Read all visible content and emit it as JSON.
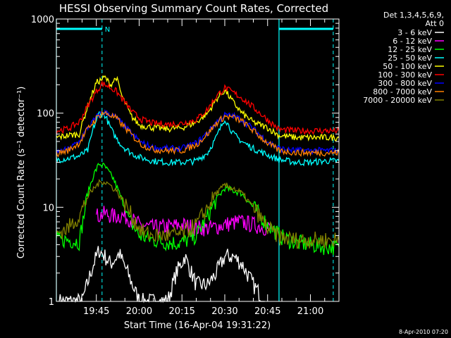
{
  "chart_data": {
    "type": "line",
    "title": "HESSI Observing Summary Count Rates, Corrected",
    "xlabel": "Start Time (16-Apr-04 19:31:22)",
    "ylabel": "Corrected Count Rate (s⁻¹ detector⁻¹)",
    "yscale": "log",
    "ylim": [
      1,
      1000
    ],
    "yticks": [
      1,
      10,
      100,
      1000
    ],
    "ytick_labels": [
      "1",
      "10",
      "100",
      "1000"
    ],
    "xlim": [
      "19:31",
      "21:10"
    ],
    "xticks": [
      "19:45",
      "20:00",
      "20:15",
      "20:30",
      "20:45",
      "21:00"
    ],
    "grid": false,
    "legend_placement": "right",
    "legend_header": [
      "Det 1,3,4,5,6,9,",
      "Att 0"
    ],
    "timestamp": "8-Apr-2010 07:20",
    "annotations": [
      {
        "text": "N",
        "at": "19:47"
      }
    ],
    "markers": {
      "dashed_lines": [
        "19:47",
        "21:08"
      ],
      "solid_lines": [
        "19:31",
        "20:49"
      ],
      "bars": [
        [
          "19:31",
          "19:47"
        ],
        [
          "20:49",
          "21:08"
        ]
      ],
      "color": "#00ffff"
    },
    "series": [
      {
        "name": "3 - 6 keV",
        "color": "#ffffff",
        "x": [
          "19:32",
          "19:40",
          "19:44",
          "19:46",
          "19:48",
          "19:50",
          "19:53",
          "19:56",
          "20:00",
          "20:05",
          "20:10",
          "20:13",
          "20:16",
          "20:20",
          "20:24",
          "20:27",
          "20:30",
          "20:33",
          "20:36",
          "20:40",
          "20:44"
        ],
        "y": [
          1.0,
          1.0,
          2.5,
          3.5,
          3.0,
          2.5,
          3.2,
          2.0,
          1.0,
          1.0,
          1.0,
          2.0,
          3.0,
          1.5,
          1.5,
          2.0,
          3.0,
          3.0,
          2.5,
          1.5,
          1.0
        ]
      },
      {
        "name": "6 - 12 keV",
        "color": "#ff00ff",
        "x": [
          "19:45",
          "19:48",
          "19:51",
          "19:54",
          "19:57",
          "20:00",
          "20:05",
          "20:10",
          "20:15",
          "20:20",
          "20:25",
          "20:30",
          "20:35",
          "20:40",
          "20:45",
          "20:47"
        ],
        "y": [
          8.0,
          8.5,
          8.0,
          8.2,
          7.5,
          6.5,
          6.0,
          6.2,
          6.5,
          6.0,
          6.0,
          6.5,
          7.0,
          6.5,
          6.0,
          6.0
        ]
      },
      {
        "name": "12 - 25 keV",
        "color": "#00ff00",
        "x": [
          "19:31",
          "19:35",
          "19:39",
          "19:42",
          "19:44",
          "19:46",
          "19:48",
          "19:51",
          "19:54",
          "19:57",
          "20:00",
          "20:05",
          "20:10",
          "20:15",
          "20:20",
          "20:24",
          "20:27",
          "20:30",
          "20:33",
          "20:36",
          "20:40",
          "20:45",
          "20:50",
          "20:55",
          "21:00",
          "21:05",
          "21:10"
        ],
        "y": [
          4.5,
          4.5,
          4.3,
          14,
          22,
          29,
          27,
          20,
          12,
          7,
          5,
          4.5,
          4.2,
          4.2,
          5,
          8,
          12,
          16,
          15,
          14,
          10,
          6.5,
          4.8,
          4.2,
          4.0,
          3.8,
          3.8
        ]
      },
      {
        "name": "25 - 50 keV",
        "color": "#00ffff",
        "x": [
          "19:31",
          "19:35",
          "19:39",
          "19:42",
          "19:44",
          "19:46",
          "19:48",
          "19:51",
          "19:54",
          "19:57",
          "20:00",
          "20:05",
          "20:10",
          "20:15",
          "20:20",
          "20:24",
          "20:27",
          "20:30",
          "20:33",
          "20:36",
          "20:40",
          "20:45",
          "20:49",
          "20:55",
          "21:00",
          "21:05",
          "21:10"
        ],
        "y": [
          32,
          33,
          35,
          40,
          70,
          100,
          95,
          60,
          45,
          38,
          34,
          31,
          30,
          30,
          31,
          38,
          55,
          88,
          60,
          50,
          42,
          36,
          32,
          30,
          30,
          31,
          31
        ]
      },
      {
        "name": "50 - 100 keV",
        "color": "#ffff00",
        "x": [
          "19:31",
          "19:35",
          "19:39",
          "19:42",
          "19:45",
          "19:48",
          "19:50",
          "19:52",
          "19:54",
          "19:57",
          "20:00",
          "20:05",
          "20:10",
          "20:15",
          "20:20",
          "20:24",
          "20:27",
          "20:30",
          "20:33",
          "20:36",
          "20:40",
          "20:45",
          "20:49",
          "20:55",
          "21:00",
          "21:05",
          "21:10"
        ],
        "y": [
          55,
          58,
          60,
          120,
          210,
          240,
          200,
          240,
          150,
          95,
          75,
          70,
          68,
          70,
          80,
          100,
          140,
          175,
          130,
          100,
          80,
          70,
          58,
          55,
          55,
          55,
          55
        ]
      },
      {
        "name": "100 - 300 keV",
        "color": "#ff0000",
        "x": [
          "19:31",
          "19:35",
          "19:39",
          "19:42",
          "19:45",
          "19:47",
          "19:49",
          "19:52",
          "19:55",
          "19:58",
          "20:01",
          "20:05",
          "20:10",
          "20:15",
          "20:20",
          "20:24",
          "20:27",
          "20:30",
          "20:33",
          "20:36",
          "20:40",
          "20:45",
          "20:49",
          "20:55",
          "21:00",
          "21:05",
          "21:10"
        ],
        "y": [
          65,
          68,
          80,
          120,
          170,
          205,
          195,
          170,
          130,
          100,
          85,
          78,
          76,
          78,
          85,
          110,
          150,
          185,
          165,
          145,
          115,
          85,
          67,
          65,
          65,
          65,
          65
        ]
      },
      {
        "name": "300 - 800 keV",
        "color": "#0000ff",
        "x": [
          "19:31",
          "19:35",
          "19:39",
          "19:42",
          "19:45",
          "19:47",
          "19:49",
          "19:52",
          "19:55",
          "19:58",
          "20:01",
          "20:05",
          "20:10",
          "20:15",
          "20:20",
          "20:24",
          "20:27",
          "20:30",
          "20:33",
          "20:36",
          "20:40",
          "20:45",
          "20:49",
          "20:55",
          "21:00",
          "21:05",
          "21:10"
        ],
        "y": [
          38,
          41,
          50,
          70,
          90,
          102,
          100,
          90,
          72,
          58,
          48,
          43,
          42,
          42,
          48,
          62,
          80,
          95,
          93,
          85,
          68,
          50,
          42,
          40,
          40,
          40,
          40
        ]
      },
      {
        "name": "800 - 7000 keV",
        "color": "#ff8000",
        "x": [
          "19:31",
          "19:35",
          "19:39",
          "19:42",
          "19:45",
          "19:47",
          "19:49",
          "19:52",
          "19:55",
          "19:58",
          "20:01",
          "20:05",
          "20:10",
          "20:15",
          "20:20",
          "20:24",
          "20:27",
          "20:30",
          "20:33",
          "20:36",
          "20:40",
          "20:45",
          "20:49",
          "20:55",
          "21:00",
          "21:05",
          "21:10"
        ],
        "y": [
          37,
          40,
          48,
          68,
          88,
          100,
          98,
          88,
          70,
          56,
          46,
          41,
          40,
          40,
          46,
          60,
          78,
          92,
          90,
          82,
          65,
          48,
          40,
          38,
          38,
          38,
          38
        ]
      },
      {
        "name": "7000 - 20000 keV",
        "color": "#808000",
        "x": [
          "19:31",
          "19:35",
          "19:39",
          "19:42",
          "19:45",
          "19:47",
          "19:49",
          "19:52",
          "19:55",
          "19:58",
          "20:01",
          "20:05",
          "20:10",
          "20:15",
          "20:20",
          "20:24",
          "20:27",
          "20:30",
          "20:33",
          "20:36",
          "20:40",
          "20:45",
          "20:49",
          "20:55",
          "21:00",
          "21:05",
          "21:10"
        ],
        "y": [
          5.2,
          6.0,
          8.0,
          13,
          17,
          19,
          18,
          15,
          11,
          7.5,
          5.5,
          5.0,
          5.0,
          5.2,
          6.5,
          10,
          14,
          17,
          16,
          14,
          10,
          6.0,
          4.8,
          4.5,
          4.5,
          4.5,
          4.5
        ]
      }
    ]
  }
}
